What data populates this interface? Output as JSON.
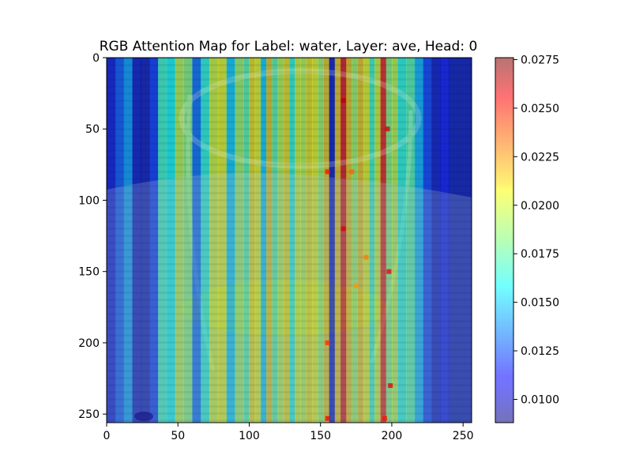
{
  "chart_data": {
    "type": "heatmap",
    "title": "RGB Attention Map for Label: water, Layer: ave, Head: 0",
    "xlabel": "",
    "ylabel": "",
    "xlim": [
      0,
      256
    ],
    "ylim": [
      256,
      0
    ],
    "x_ticks": [
      0,
      50,
      100,
      150,
      200,
      250
    ],
    "y_ticks": [
      0,
      50,
      100,
      150,
      200,
      250
    ],
    "x_tick_labels": [
      "0",
      "50",
      "100",
      "150",
      "200",
      "250"
    ],
    "y_tick_labels": [
      "0",
      "50",
      "100",
      "150",
      "200",
      "250"
    ],
    "colorbar": {
      "colormap": "jet",
      "range": [
        0.0088,
        0.0276
      ],
      "ticks": [
        0.01,
        0.0125,
        0.015,
        0.0175,
        0.02,
        0.0225,
        0.025,
        0.0275
      ],
      "tick_labels": [
        "0.0100",
        "0.0125",
        "0.0150",
        "0.0175",
        "0.0200",
        "0.0225",
        "0.0250",
        "0.0275"
      ]
    },
    "column_attention": {
      "x_start": [
        0,
        6,
        12,
        18,
        24,
        30,
        36,
        42,
        48,
        54,
        60,
        66,
        72,
        78,
        84,
        90,
        96,
        100,
        104,
        108,
        112,
        116,
        120,
        124,
        128,
        132,
        136,
        140,
        144,
        148,
        152,
        156,
        160,
        164,
        168,
        172,
        176,
        180,
        184,
        188,
        192,
        196,
        200,
        204,
        210,
        216,
        222,
        228,
        234,
        240
      ],
      "value": [
        0.0105,
        0.0125,
        0.014,
        0.01,
        0.0098,
        0.0118,
        0.017,
        0.016,
        0.0195,
        0.0185,
        0.013,
        0.0165,
        0.02,
        0.0205,
        0.015,
        0.019,
        0.0175,
        0.021,
        0.0205,
        0.015,
        0.0215,
        0.0175,
        0.0195,
        0.021,
        0.0165,
        0.02,
        0.0195,
        0.021,
        0.0205,
        0.019,
        0.0215,
        0.01,
        0.0215,
        0.0255,
        0.0215,
        0.019,
        0.0215,
        0.0205,
        0.017,
        0.02,
        0.025,
        0.0185,
        0.0195,
        0.0165,
        0.0175,
        0.0145,
        0.012,
        0.01,
        0.011,
        0.0098
      ]
    },
    "hotspots": {
      "x": [
        155,
        155,
        166,
        166,
        172,
        175,
        182,
        197,
        198,
        199,
        155,
        195
      ],
      "y": [
        80,
        200,
        30,
        120,
        80,
        160,
        140,
        50,
        150,
        230,
        253,
        253
      ],
      "value": [
        0.025,
        0.0245,
        0.0265,
        0.026,
        0.0235,
        0.0225,
        0.023,
        0.0262,
        0.0255,
        0.0258,
        0.0255,
        0.025
      ]
    }
  }
}
